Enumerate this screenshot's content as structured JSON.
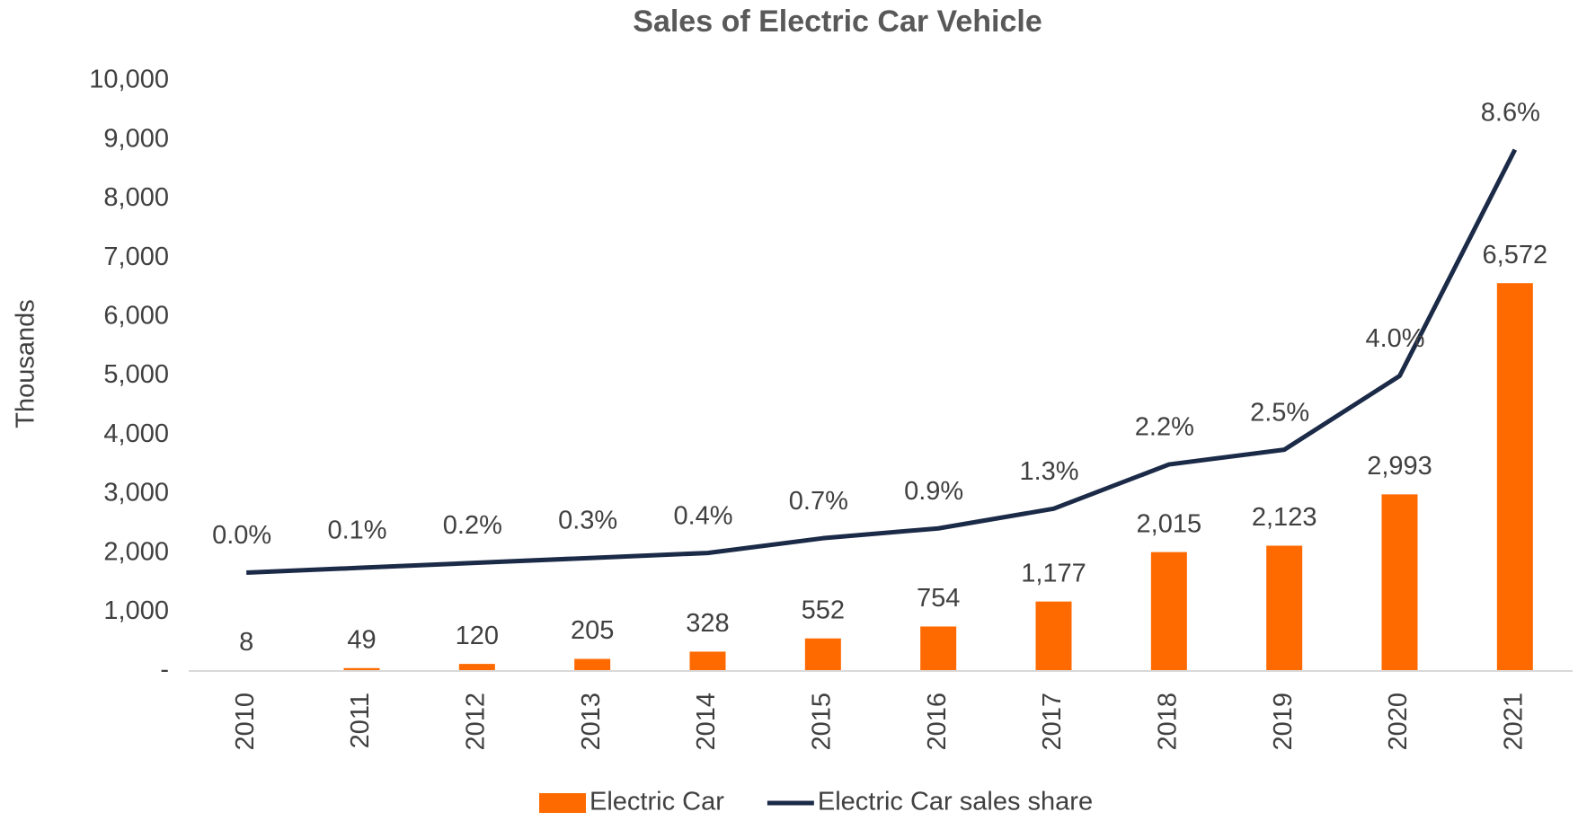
{
  "chart_data": {
    "type": "combo",
    "title": "Sales of Electric Car Vehicle",
    "y_label": "Thousands",
    "categories": [
      "2010",
      "2011",
      "2012",
      "2013",
      "2014",
      "2015",
      "2016",
      "2017",
      "2018",
      "2019",
      "2020",
      "2021"
    ],
    "series": [
      {
        "name": "Electric Car",
        "type": "bar",
        "color": "#ff6a00",
        "values": [
          8,
          49,
          120,
          205,
          328,
          552,
          754,
          1177,
          2015,
          2123,
          2993,
          6572
        ],
        "value_labels": [
          "8",
          "49",
          "120",
          "205",
          "328",
          "552",
          "754",
          "1,177",
          "2,015",
          "2,123",
          "2,993",
          "6,572"
        ]
      },
      {
        "name": "Electric Car sales share",
        "type": "line",
        "axis": "y2",
        "color": "#1b2a47",
        "values": [
          0.0,
          0.1,
          0.2,
          0.3,
          0.4,
          0.7,
          0.9,
          1.3,
          2.2,
          2.5,
          4.0,
          8.6
        ],
        "value_labels": [
          "0.0%",
          "0.1%",
          "0.2%",
          "0.3%",
          "0.4%",
          "0.7%",
          "0.9%",
          "1.3%",
          "2.2%",
          "2.5%",
          "4.0%",
          "8.6%"
        ]
      }
    ],
    "ylim": [
      0,
      10000
    ],
    "yticks": [
      {
        "value": 0,
        "label": "-"
      },
      {
        "value": 1000,
        "label": "1,000"
      },
      {
        "value": 2000,
        "label": "2,000"
      },
      {
        "value": 3000,
        "label": "3,000"
      },
      {
        "value": 4000,
        "label": "4,000"
      },
      {
        "value": 5000,
        "label": "5,000"
      },
      {
        "value": 6000,
        "label": "6,000"
      },
      {
        "value": 7000,
        "label": "7,000"
      },
      {
        "value": 8000,
        "label": "8,000"
      },
      {
        "value": 9000,
        "label": "9,000"
      },
      {
        "value": 10000,
        "label": "10,000"
      }
    ],
    "y2lim": [
      -2,
      10
    ],
    "grid": false,
    "legend": "bottom"
  }
}
